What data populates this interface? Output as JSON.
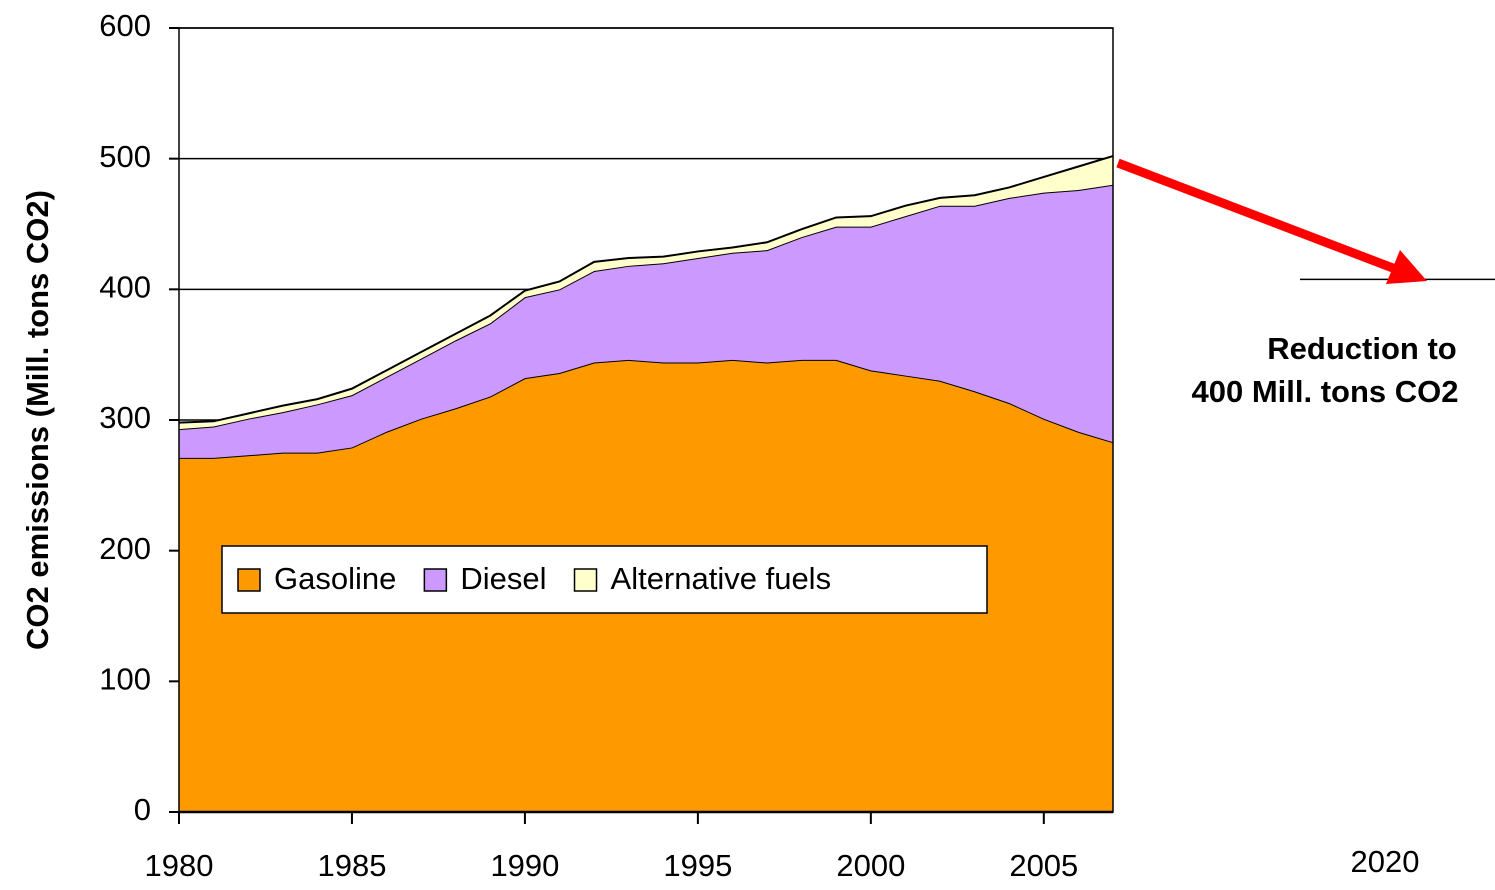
{
  "chart_data": {
    "type": "stacked_area",
    "y_label": "CO2  emissions (Mill. tons CO2)",
    "x": [
      1980,
      1981,
      1982,
      1983,
      1984,
      1985,
      1986,
      1987,
      1988,
      1989,
      1990,
      1991,
      1992,
      1993,
      1994,
      1995,
      1996,
      1997,
      1998,
      1999,
      2000,
      2001,
      2002,
      2003,
      2004,
      2005,
      2006,
      2007
    ],
    "series": [
      {
        "name": "Gasoline",
        "color": "#ff9900",
        "values": [
          271,
          271,
          273,
          275,
          275,
          279,
          291,
          301,
          309,
          318,
          332,
          336,
          344,
          346,
          344,
          344,
          346,
          344,
          346,
          346,
          338,
          334,
          330,
          322,
          313,
          301,
          291,
          283
        ]
      },
      {
        "name": "Diesel",
        "color": "#cc99ff",
        "values": [
          22,
          24,
          28,
          31,
          37,
          40,
          42,
          46,
          52,
          56,
          62,
          64,
          70,
          72,
          76,
          80,
          82,
          86,
          94,
          102,
          110,
          122,
          134,
          142,
          157,
          173,
          185,
          197
        ]
      },
      {
        "name": "Alternative fuels",
        "color": "#ffffcc",
        "values": [
          5,
          4,
          4,
          5,
          4,
          5,
          5,
          5,
          5,
          6,
          5,
          6,
          7,
          6,
          5,
          5,
          4,
          6,
          6,
          7,
          8,
          8,
          6,
          8,
          8,
          12,
          18,
          22
        ]
      }
    ],
    "xlim": [
      1980,
      2007
    ],
    "xticks": [
      1980,
      1985,
      1990,
      1995,
      2000,
      2005
    ],
    "ylim": [
      0,
      600
    ],
    "yticks": [
      0,
      100,
      200,
      300,
      400,
      500,
      600
    ],
    "grid": true,
    "target": {
      "value": 400,
      "year_label": "2020",
      "text": [
        "Reduction to",
        "400 Mill. tons CO2"
      ],
      "color": "#ff0000"
    }
  }
}
